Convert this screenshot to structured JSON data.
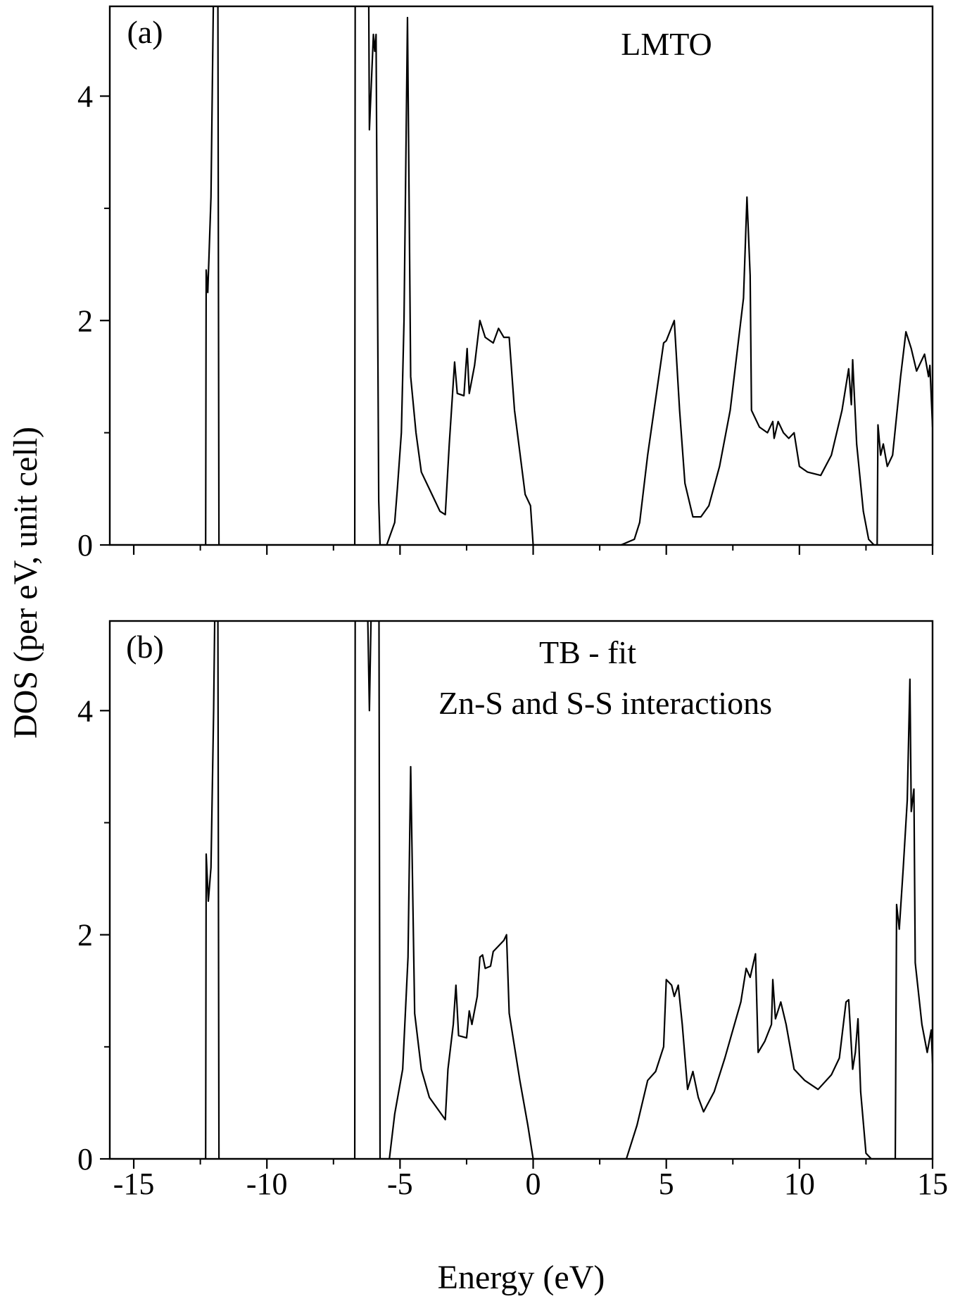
{
  "chart_data": [
    {
      "type": "line",
      "panel_label": "(a)",
      "annotations": [
        "LMTO"
      ],
      "ylabel": "DOS (per eV, unit cell)",
      "xlim": [
        -15.9,
        15
      ],
      "ylim": [
        0,
        4.8
      ],
      "xticks": [
        -15,
        -10,
        -5,
        0,
        5,
        10,
        15
      ],
      "xminorticks": [
        -12.5,
        -7.5,
        -2.5,
        2.5,
        7.5,
        12.5
      ],
      "yticks": [
        0,
        2,
        4
      ],
      "yminorticks": [
        1,
        3
      ],
      "series": [
        {
          "color": "#000000",
          "x": [
            -15.9,
            -12.3,
            -12.28,
            -12.22,
            -12.1,
            -11.95,
            -11.85,
            -11.8,
            -6.7,
            -6.68,
            -6.2,
            -6.15,
            -6.0,
            -5.95,
            -5.9,
            -5.8,
            -5.75,
            -5.5,
            -5.2,
            -5.1,
            -4.95,
            -4.85,
            -4.72,
            -4.6,
            -4.4,
            -4.2,
            -3.8,
            -3.5,
            -3.3,
            -3.15,
            -2.95,
            -2.85,
            -2.6,
            -2.48,
            -2.4,
            -2.2,
            -2.0,
            -1.8,
            -1.5,
            -1.3,
            -1.1,
            -0.9,
            -0.7,
            -0.3,
            -0.1,
            0.0,
            3.3,
            3.8,
            4.0,
            4.3,
            4.6,
            4.9,
            5.0,
            5.3,
            5.5,
            5.7,
            6.0,
            6.3,
            6.6,
            7.0,
            7.4,
            7.6,
            7.9,
            8.03,
            8.15,
            8.2,
            8.5,
            8.8,
            9.0,
            9.05,
            9.2,
            9.4,
            9.6,
            9.8,
            10.0,
            10.3,
            10.8,
            11.2,
            11.6,
            11.85,
            11.95,
            12.0,
            12.15,
            12.4,
            12.6,
            12.8,
            12.92,
            12.95,
            13.05,
            13.15,
            13.3,
            13.5,
            13.8,
            14.0,
            14.2,
            14.4,
            14.7,
            14.85,
            14.9,
            15.0
          ],
          "values": [
            0,
            0,
            2.45,
            2.25,
            3.1,
            6,
            6,
            0,
            0,
            6,
            6,
            3.7,
            4.55,
            4.4,
            4.55,
            0.4,
            0,
            0,
            0.2,
            0.5,
            1.0,
            2.0,
            4.7,
            1.5,
            1.0,
            0.65,
            0.45,
            0.3,
            0.27,
            0.9,
            1.63,
            1.35,
            1.33,
            1.75,
            1.35,
            1.6,
            2.0,
            1.85,
            1.8,
            1.93,
            1.85,
            1.85,
            1.2,
            0.45,
            0.35,
            0,
            0,
            0.05,
            0.2,
            0.8,
            1.3,
            1.8,
            1.82,
            2.0,
            1.2,
            0.55,
            0.25,
            0.25,
            0.35,
            0.7,
            1.2,
            1.6,
            2.2,
            3.1,
            2.4,
            1.2,
            1.05,
            1.0,
            1.1,
            0.95,
            1.1,
            1.0,
            0.95,
            1.0,
            0.7,
            0.65,
            0.62,
            0.8,
            1.2,
            1.57,
            1.25,
            1.65,
            0.9,
            0.3,
            0.05,
            0,
            0,
            1.07,
            0.8,
            0.9,
            0.7,
            0.8,
            1.5,
            1.9,
            1.75,
            1.55,
            1.7,
            1.5,
            1.6,
            1.05
          ]
        }
      ]
    },
    {
      "type": "line",
      "panel_label": "(b)",
      "annotations": [
        "TB - fit",
        "Zn-S and S-S interactions"
      ],
      "xlabel": "Energy (eV)",
      "xlim": [
        -15.9,
        15
      ],
      "ylim": [
        0,
        4.8
      ],
      "xticks": [
        -15,
        -10,
        -5,
        0,
        5,
        10,
        15
      ],
      "xminorticks": [
        -12.5,
        -7.5,
        -2.5,
        2.5,
        7.5,
        12.5
      ],
      "yticks": [
        0,
        2,
        4
      ],
      "yminorticks": [
        1,
        3
      ],
      "series": [
        {
          "color": "#000000",
          "x": [
            -15.9,
            -12.3,
            -12.28,
            -12.2,
            -12.1,
            -12.0,
            -11.9,
            -11.85,
            -11.8,
            -6.7,
            -6.68,
            -6.3,
            -6.15,
            -6.0,
            -5.8,
            -5.75,
            -5.4,
            -5.2,
            -4.9,
            -4.7,
            -4.6,
            -4.45,
            -4.2,
            -3.9,
            -3.6,
            -3.3,
            -3.2,
            -3.0,
            -2.9,
            -2.8,
            -2.5,
            -2.4,
            -2.3,
            -2.1,
            -2.0,
            -1.9,
            -1.8,
            -1.6,
            -1.5,
            -1.3,
            -1.1,
            -1.0,
            -0.9,
            -0.5,
            -0.2,
            0.0,
            3.5,
            3.9,
            4.3,
            4.6,
            4.9,
            5.0,
            5.2,
            5.3,
            5.45,
            5.6,
            5.8,
            6.0,
            6.2,
            6.4,
            6.8,
            7.2,
            7.5,
            7.8,
            8.0,
            8.15,
            8.35,
            8.45,
            8.7,
            8.95,
            9.0,
            9.1,
            9.3,
            9.5,
            9.8,
            10.2,
            10.7,
            11.2,
            11.5,
            11.75,
            11.85,
            12.0,
            12.1,
            12.2,
            12.3,
            12.5,
            12.7,
            13.6,
            13.65,
            13.75,
            13.9,
            14.05,
            14.15,
            14.2,
            14.3,
            14.35,
            14.6,
            14.8,
            14.95,
            15.0
          ],
          "values": [
            0,
            0,
            2.72,
            2.3,
            2.6,
            4.0,
            6,
            6,
            0,
            0,
            6,
            6,
            4.0,
            6,
            6,
            0,
            0,
            0.4,
            0.8,
            1.8,
            3.5,
            1.3,
            0.8,
            0.55,
            0.45,
            0.35,
            0.8,
            1.2,
            1.55,
            1.1,
            1.08,
            1.32,
            1.2,
            1.45,
            1.8,
            1.82,
            1.7,
            1.72,
            1.85,
            1.9,
            1.95,
            2.0,
            1.3,
            0.7,
            0.3,
            0,
            0,
            0.3,
            0.7,
            0.78,
            1.0,
            1.6,
            1.55,
            1.45,
            1.55,
            1.2,
            0.62,
            0.78,
            0.55,
            0.42,
            0.6,
            0.9,
            1.15,
            1.4,
            1.7,
            1.62,
            1.83,
            0.95,
            1.05,
            1.2,
            1.6,
            1.25,
            1.4,
            1.2,
            0.8,
            0.7,
            0.62,
            0.75,
            0.9,
            1.4,
            1.42,
            0.8,
            0.95,
            1.25,
            0.6,
            0.05,
            0,
            0,
            2.27,
            2.05,
            2.6,
            3.2,
            4.28,
            3.1,
            3.3,
            1.75,
            1.2,
            0.95,
            1.15,
            0.85
          ]
        }
      ]
    }
  ]
}
